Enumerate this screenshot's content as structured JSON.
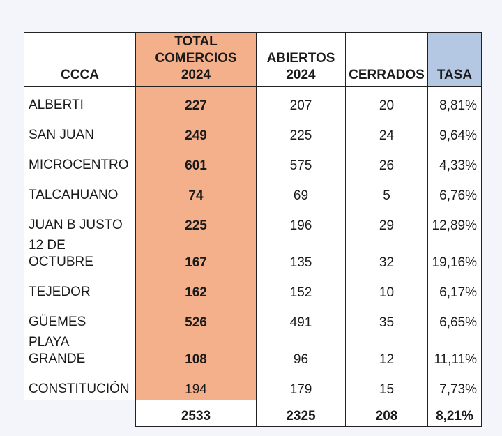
{
  "headers": {
    "name": "CCCA",
    "total": "TOTAL\nCOMERCIOS\n2024",
    "open": "ABIERTOS\n2024",
    "closed": "CERRADOS",
    "rate": "TASA"
  },
  "rows": [
    {
      "name": "ALBERTI",
      "total": "227",
      "open": "207",
      "closed": "20",
      "rate": "8,81%"
    },
    {
      "name": "SAN JUAN",
      "total": "249",
      "open": "225",
      "closed": "24",
      "rate": "9,64%"
    },
    {
      "name": "MICROCENTRO",
      "total": "601",
      "open": "575",
      "closed": "26",
      "rate": "4,33%"
    },
    {
      "name": "TALCAHUANO",
      "total": "74",
      "open": "69",
      "closed": "5",
      "rate": "6,76%"
    },
    {
      "name": "JUAN B JUSTO",
      "total": "225",
      "open": "196",
      "closed": "29",
      "rate": "12,89%"
    },
    {
      "name": "12 DE\nOCTUBRE",
      "total": "167",
      "open": "135",
      "closed": "32",
      "rate": "19,16%"
    },
    {
      "name": "TEJEDOR",
      "total": "162",
      "open": "152",
      "closed": "10",
      "rate": "6,17%"
    },
    {
      "name": "GÜEMES",
      "total": "526",
      "open": "491",
      "closed": "35",
      "rate": "6,65%"
    },
    {
      "name": "PLAYA\nGRANDE",
      "total": "108",
      "open": "96",
      "closed": "12",
      "rate": "11,11%"
    },
    {
      "name": "CONSTITUCIÓN",
      "total": "194",
      "open": "179",
      "closed": "15",
      "rate": "7,73%"
    }
  ],
  "totals": {
    "total": "2533",
    "open": "2325",
    "closed": "208",
    "rate": "8,21%"
  },
  "colors": {
    "total_column": "#f4b08a",
    "rate_header": "#b4c8e3"
  }
}
